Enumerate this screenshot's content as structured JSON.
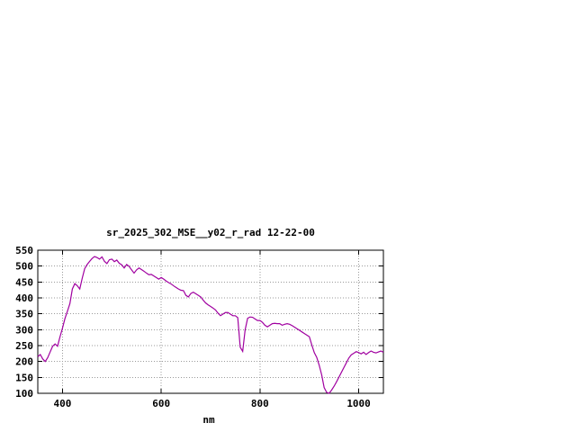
{
  "chart_data": {
    "type": "line",
    "title": "sr_2025_302_MSE__y02_r_rad 12-22-00",
    "xlabel": "nm",
    "ylabel": "",
    "xlim": [
      350,
      1050
    ],
    "ylim": [
      100,
      550
    ],
    "x_ticks": [
      400,
      600,
      800,
      1000
    ],
    "y_ticks": [
      100,
      150,
      200,
      250,
      300,
      350,
      400,
      450,
      500,
      550
    ],
    "grid": true,
    "legend": false,
    "line_color": "#a000a0",
    "series": [
      {
        "name": "sr_2025_302_MSE__y02_r_rad",
        "x_start": 350,
        "x_step": 5,
        "values": [
          215,
          222,
          208,
          200,
          212,
          230,
          248,
          255,
          248,
          278,
          305,
          335,
          358,
          382,
          428,
          445,
          438,
          428,
          462,
          492,
          505,
          515,
          524,
          530,
          527,
          522,
          529,
          515,
          508,
          520,
          522,
          514,
          519,
          509,
          504,
          494,
          505,
          499,
          488,
          478,
          488,
          494,
          489,
          484,
          478,
          473,
          474,
          469,
          464,
          459,
          464,
          459,
          453,
          448,
          444,
          438,
          433,
          428,
          424,
          423,
          408,
          403,
          414,
          418,
          413,
          408,
          403,
          393,
          384,
          378,
          373,
          368,
          362,
          352,
          344,
          349,
          354,
          354,
          349,
          344,
          344,
          338,
          245,
          232,
          300,
          336,
          340,
          339,
          334,
          329,
          329,
          323,
          314,
          309,
          314,
          319,
          320,
          319,
          319,
          314,
          317,
          319,
          317,
          313,
          308,
          303,
          298,
          293,
          288,
          283,
          278,
          252,
          228,
          213,
          188,
          158,
          118,
          103,
          100,
          110,
          122,
          136,
          151,
          166,
          181,
          196,
          211,
          221,
          226,
          231,
          228,
          224,
          229,
          222,
          228,
          233,
          229,
          227,
          230,
          233,
          229
        ]
      }
    ]
  }
}
